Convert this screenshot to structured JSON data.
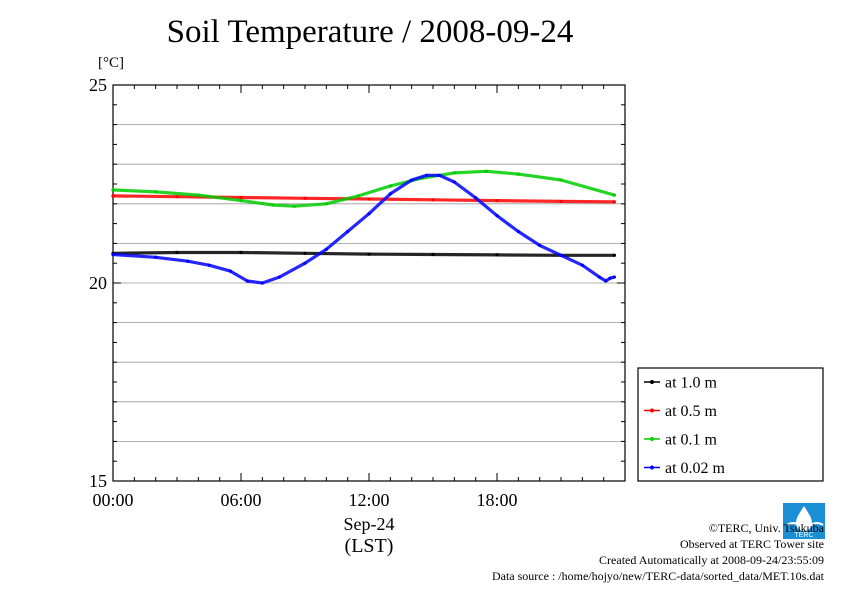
{
  "chart_data": {
    "type": "line",
    "title": "Soil Temperature / 2008-09-24",
    "ylabel": "[°C]",
    "xlabel": "Sep-24",
    "xlabel2": "(LST)",
    "ylim": [
      15,
      25
    ],
    "xlim_hours": [
      0,
      24
    ],
    "yticks": [
      "25",
      "20",
      "15"
    ],
    "xticks": [
      "00:00",
      "06:00",
      "12:00",
      "18:00"
    ],
    "grid": true,
    "legend_position": "right",
    "series": [
      {
        "name": "at 1.0 m",
        "color": "#000000",
        "points": [
          [
            0,
            20.75
          ],
          [
            3,
            20.77
          ],
          [
            6,
            20.77
          ],
          [
            9,
            20.75
          ],
          [
            12,
            20.73
          ],
          [
            15,
            20.72
          ],
          [
            18,
            20.71
          ],
          [
            21,
            20.7
          ],
          [
            23.5,
            20.7
          ]
        ]
      },
      {
        "name": "at 0.5 m",
        "color": "#ff0000",
        "points": [
          [
            0,
            22.2
          ],
          [
            3,
            22.18
          ],
          [
            6,
            22.16
          ],
          [
            9,
            22.14
          ],
          [
            12,
            22.12
          ],
          [
            15,
            22.1
          ],
          [
            18,
            22.08
          ],
          [
            21,
            22.06
          ],
          [
            23.5,
            22.05
          ]
        ]
      },
      {
        "name": "at 0.1 m",
        "color": "#00cc00",
        "points": [
          [
            0,
            22.35
          ],
          [
            2,
            22.3
          ],
          [
            4,
            22.22
          ],
          [
            6,
            22.08
          ],
          [
            7.5,
            21.97
          ],
          [
            8.5,
            21.94
          ],
          [
            10,
            22.0
          ],
          [
            11.5,
            22.2
          ],
          [
            13,
            22.45
          ],
          [
            14.5,
            22.65
          ],
          [
            16,
            22.78
          ],
          [
            17.5,
            22.82
          ],
          [
            19,
            22.75
          ],
          [
            21,
            22.6
          ],
          [
            23.5,
            22.22
          ]
        ]
      },
      {
        "name": "at 0.02 m",
        "color": "#0000ff",
        "points": [
          [
            0,
            20.72
          ],
          [
            2,
            20.65
          ],
          [
            3.5,
            20.55
          ],
          [
            4.5,
            20.45
          ],
          [
            5.5,
            20.3
          ],
          [
            6.3,
            20.05
          ],
          [
            7,
            20.0
          ],
          [
            7.8,
            20.15
          ],
          [
            9,
            20.5
          ],
          [
            10,
            20.85
          ],
          [
            11,
            21.3
          ],
          [
            12,
            21.75
          ],
          [
            13,
            22.25
          ],
          [
            14,
            22.6
          ],
          [
            14.7,
            22.72
          ],
          [
            15.3,
            22.72
          ],
          [
            16,
            22.55
          ],
          [
            17,
            22.15
          ],
          [
            18,
            21.7
          ],
          [
            19,
            21.3
          ],
          [
            20,
            20.95
          ],
          [
            21,
            20.7
          ],
          [
            22,
            20.45
          ],
          [
            22.8,
            20.15
          ],
          [
            23.1,
            20.05
          ],
          [
            23.3,
            20.12
          ],
          [
            23.5,
            20.15
          ]
        ]
      }
    ]
  },
  "footer": {
    "copyright": "©TERC, Univ. Tsukuba",
    "site": "Observed at TERC Tower site",
    "created": "Created Automatically at 2008-09-24/23:55:09",
    "source": "Data source : /home/hojyo/new/TERC-data/sorted_data/MET.10s.dat",
    "logo_text": "TERC"
  }
}
